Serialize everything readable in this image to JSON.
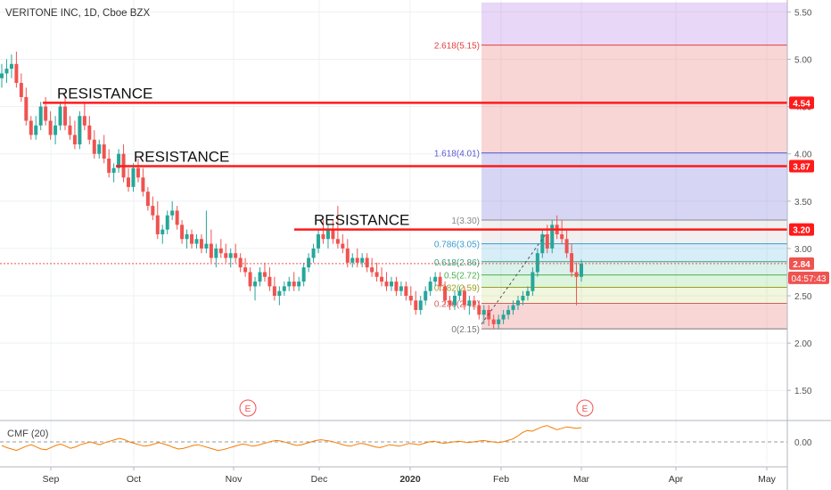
{
  "chart_data": {
    "type": "candlestick",
    "title": "VERITONE INC, 1D, Cboe BZX",
    "y_axis": {
      "ticks": [
        "1.50",
        "2.00",
        "2.50",
        "3.00",
        "3.50",
        "4.00",
        "4.50",
        "5.00",
        "5.50"
      ],
      "ylim": [
        1.1,
        5.6
      ]
    },
    "x_axis": {
      "ticks": [
        "Sep",
        "Oct",
        "Nov",
        "Dec",
        "2020",
        "Feb",
        "Mar",
        "Apr",
        "May"
      ]
    },
    "grid": true,
    "candles": [
      [
        4.8,
        4.95,
        4.7,
        4.85
      ],
      [
        4.85,
        5.0,
        4.75,
        4.9
      ],
      [
        4.9,
        5.05,
        4.8,
        4.95
      ],
      [
        4.95,
        5.08,
        4.7,
        4.75
      ],
      [
        4.75,
        4.85,
        4.55,
        4.6
      ],
      [
        4.6,
        4.7,
        4.3,
        4.35
      ],
      [
        4.35,
        4.4,
        4.15,
        4.2
      ],
      [
        4.2,
        4.4,
        4.15,
        4.3
      ],
      [
        4.3,
        4.55,
        4.25,
        4.5
      ],
      [
        4.5,
        4.6,
        4.3,
        4.35
      ],
      [
        4.35,
        4.45,
        4.15,
        4.2
      ],
      [
        4.2,
        4.4,
        4.1,
        4.3
      ],
      [
        4.3,
        4.55,
        4.25,
        4.5
      ],
      [
        4.5,
        4.6,
        4.25,
        4.3
      ],
      [
        4.3,
        4.4,
        4.15,
        4.2
      ],
      [
        4.2,
        4.35,
        4.05,
        4.1
      ],
      [
        4.1,
        4.45,
        4.05,
        4.4
      ],
      [
        4.4,
        4.55,
        4.25,
        4.3
      ],
      [
        4.3,
        4.4,
        4.1,
        4.15
      ],
      [
        4.15,
        4.25,
        3.95,
        4.0
      ],
      [
        4.0,
        4.15,
        3.95,
        4.1
      ],
      [
        4.1,
        4.2,
        3.9,
        3.95
      ],
      [
        3.95,
        4.05,
        3.75,
        3.8
      ],
      [
        3.8,
        3.9,
        3.7,
        3.85
      ],
      [
        3.85,
        4.05,
        3.8,
        4.0
      ],
      [
        4.0,
        4.1,
        3.7,
        3.75
      ],
      [
        3.75,
        3.85,
        3.6,
        3.65
      ],
      [
        3.65,
        3.9,
        3.6,
        3.85
      ],
      [
        3.85,
        3.95,
        3.7,
        3.75
      ],
      [
        3.75,
        3.85,
        3.55,
        3.6
      ],
      [
        3.6,
        3.65,
        3.4,
        3.45
      ],
      [
        3.45,
        3.55,
        3.3,
        3.35
      ],
      [
        3.35,
        3.5,
        3.1,
        3.15
      ],
      [
        3.15,
        3.25,
        3.05,
        3.2
      ],
      [
        3.2,
        3.4,
        3.15,
        3.35
      ],
      [
        3.35,
        3.5,
        3.3,
        3.4
      ],
      [
        3.4,
        3.45,
        3.2,
        3.25
      ],
      [
        3.25,
        3.3,
        3.05,
        3.1
      ],
      [
        3.1,
        3.2,
        3.0,
        3.15
      ],
      [
        3.15,
        3.2,
        3.0,
        3.05
      ],
      [
        3.05,
        3.15,
        3.0,
        3.1
      ],
      [
        3.1,
        3.15,
        2.95,
        3.0
      ],
      [
        3.0,
        3.4,
        2.95,
        3.05
      ],
      [
        3.05,
        3.2,
        2.85,
        2.9
      ],
      [
        2.9,
        3.05,
        2.8,
        3.0
      ],
      [
        3.0,
        3.1,
        2.9,
        2.95
      ],
      [
        2.95,
        3.05,
        2.85,
        2.9
      ],
      [
        2.9,
        3.0,
        2.8,
        2.95
      ],
      [
        2.95,
        3.05,
        2.85,
        2.9
      ],
      [
        2.9,
        2.95,
        2.75,
        2.8
      ],
      [
        2.8,
        2.9,
        2.7,
        2.75
      ],
      [
        2.75,
        2.8,
        2.55,
        2.6
      ],
      [
        2.6,
        2.7,
        2.45,
        2.65
      ],
      [
        2.65,
        2.8,
        2.6,
        2.75
      ],
      [
        2.75,
        2.85,
        2.65,
        2.7
      ],
      [
        2.7,
        2.8,
        2.55,
        2.6
      ],
      [
        2.6,
        2.7,
        2.45,
        2.5
      ],
      [
        2.5,
        2.6,
        2.4,
        2.55
      ],
      [
        2.55,
        2.65,
        2.5,
        2.6
      ],
      [
        2.6,
        2.7,
        2.55,
        2.65
      ],
      [
        2.65,
        2.75,
        2.55,
        2.6
      ],
      [
        2.6,
        2.7,
        2.55,
        2.65
      ],
      [
        2.65,
        2.85,
        2.6,
        2.8
      ],
      [
        2.8,
        2.95,
        2.75,
        2.9
      ],
      [
        2.9,
        3.05,
        2.85,
        3.0
      ],
      [
        3.0,
        3.2,
        2.95,
        3.15
      ],
      [
        3.15,
        3.3,
        3.05,
        3.1
      ],
      [
        3.1,
        3.25,
        3.0,
        3.2
      ],
      [
        3.2,
        3.3,
        3.05,
        3.1
      ],
      [
        3.1,
        3.45,
        3.0,
        3.05
      ],
      [
        3.05,
        3.15,
        2.95,
        3.0
      ],
      [
        3.0,
        3.1,
        2.8,
        2.85
      ],
      [
        2.85,
        2.95,
        2.8,
        2.9
      ],
      [
        2.9,
        3.0,
        2.8,
        2.85
      ],
      [
        2.85,
        2.95,
        2.8,
        2.9
      ],
      [
        2.9,
        2.95,
        2.75,
        2.8
      ],
      [
        2.8,
        2.9,
        2.7,
        2.75
      ],
      [
        2.75,
        2.85,
        2.65,
        2.7
      ],
      [
        2.7,
        2.8,
        2.6,
        2.65
      ],
      [
        2.65,
        2.75,
        2.55,
        2.6
      ],
      [
        2.6,
        2.7,
        2.55,
        2.65
      ],
      [
        2.65,
        2.7,
        2.5,
        2.55
      ],
      [
        2.55,
        2.65,
        2.5,
        2.6
      ],
      [
        2.6,
        2.65,
        2.45,
        2.5
      ],
      [
        2.5,
        2.6,
        2.4,
        2.45
      ],
      [
        2.45,
        2.55,
        2.3,
        2.35
      ],
      [
        2.35,
        2.5,
        2.3,
        2.45
      ],
      [
        2.45,
        2.6,
        2.4,
        2.55
      ],
      [
        2.55,
        2.7,
        2.5,
        2.65
      ],
      [
        2.65,
        2.75,
        2.6,
        2.7
      ],
      [
        2.7,
        2.75,
        2.55,
        2.6
      ],
      [
        2.6,
        2.65,
        2.4,
        2.45
      ],
      [
        2.45,
        2.5,
        2.35,
        2.4
      ],
      [
        2.4,
        2.55,
        2.35,
        2.5
      ],
      [
        2.5,
        2.6,
        2.45,
        2.55
      ],
      [
        2.55,
        2.6,
        2.35,
        2.4
      ],
      [
        2.4,
        2.5,
        2.3,
        2.45
      ],
      [
        2.45,
        2.5,
        2.35,
        2.4
      ],
      [
        2.4,
        2.45,
        2.25,
        2.3
      ],
      [
        2.3,
        2.4,
        2.2,
        2.35
      ],
      [
        2.35,
        2.4,
        2.18,
        2.25
      ],
      [
        2.25,
        2.3,
        2.15,
        2.2
      ],
      [
        2.2,
        2.3,
        2.15,
        2.25
      ],
      [
        2.25,
        2.35,
        2.2,
        2.3
      ],
      [
        2.3,
        2.4,
        2.25,
        2.35
      ],
      [
        2.35,
        2.45,
        2.3,
        2.4
      ],
      [
        2.4,
        2.5,
        2.35,
        2.45
      ],
      [
        2.45,
        2.55,
        2.4,
        2.5
      ],
      [
        2.5,
        2.6,
        2.45,
        2.55
      ],
      [
        2.55,
        2.8,
        2.5,
        2.75
      ],
      [
        2.75,
        3.0,
        2.7,
        2.95
      ],
      [
        2.95,
        3.2,
        2.9,
        3.15
      ],
      [
        3.15,
        3.25,
        2.95,
        3.0
      ],
      [
        3.0,
        3.3,
        2.95,
        3.25
      ],
      [
        3.25,
        3.35,
        3.1,
        3.15
      ],
      [
        3.15,
        3.3,
        3.05,
        3.1
      ],
      [
        3.1,
        3.2,
        2.9,
        2.95
      ],
      [
        2.95,
        3.05,
        2.7,
        2.75
      ],
      [
        2.75,
        2.85,
        2.4,
        2.7
      ],
      [
        2.7,
        2.88,
        2.65,
        2.84
      ]
    ],
    "fibonacci": [
      {
        "label": "2.618(5.15)",
        "value": 5.15
      },
      {
        "label": "1.618(4.01)",
        "value": 4.01
      },
      {
        "label": "1(3.30)",
        "value": 3.3
      },
      {
        "label": "0.786(3.05)",
        "value": 3.05
      },
      {
        "label": "0.618(2.86)",
        "value": 2.86
      },
      {
        "label": "0.5(2.72)",
        "value": 2.72
      },
      {
        "label": "0.382(2.59)",
        "value": 2.59
      },
      {
        "label": "0.236(2.42)",
        "value": 2.42
      },
      {
        "label": "0(2.15)",
        "value": 2.15
      }
    ],
    "resistance_lines": [
      {
        "label": "RESISTANCE",
        "value": 4.54,
        "badge": "4.54"
      },
      {
        "label": "RESISTANCE",
        "value": 3.87,
        "badge": "3.87"
      },
      {
        "label": "RESISTANCE",
        "value": 3.2,
        "badge": "3.20"
      }
    ],
    "last_price": {
      "value": 2.84,
      "label": "2.84",
      "countdown": "04:57:43"
    },
    "earnings_markers": [
      "E",
      "E"
    ],
    "indicator": {
      "title": "CMF (20)",
      "tick": "0.00",
      "values": [
        -0.05,
        -0.08,
        -0.1,
        -0.12,
        -0.09,
        -0.06,
        -0.04,
        -0.07,
        -0.1,
        -0.11,
        -0.08,
        -0.05,
        -0.03,
        -0.06,
        -0.09,
        -0.07,
        -0.04,
        -0.02,
        0.0,
        -0.02,
        -0.04,
        -0.01,
        0.01,
        0.03,
        0.05,
        0.03,
        0.0,
        -0.02,
        -0.04,
        -0.06,
        -0.05,
        -0.03,
        -0.01,
        -0.03,
        -0.05,
        -0.08,
        -0.1,
        -0.09,
        -0.07,
        -0.05,
        -0.04,
        -0.06,
        -0.08,
        -0.1,
        -0.12,
        -0.11,
        -0.09,
        -0.07,
        -0.05,
        -0.03,
        -0.04,
        -0.06,
        -0.05,
        -0.03,
        -0.01,
        0.01,
        0.02,
        0.01,
        -0.01,
        -0.03,
        -0.05,
        -0.04,
        -0.02,
        0.0,
        0.02,
        0.03,
        0.02,
        0.01,
        -0.01,
        -0.03,
        -0.05,
        -0.06,
        -0.04,
        -0.02,
        -0.03,
        -0.05,
        -0.07,
        -0.08,
        -0.06,
        -0.04,
        -0.05,
        -0.06,
        -0.04,
        -0.02,
        -0.03,
        -0.04,
        -0.02,
        0.0,
        0.01,
        -0.01,
        -0.02,
        -0.01,
        0.0,
        0.01,
        0.0,
        -0.01,
        0.0,
        0.01,
        0.02,
        0.01,
        0.0,
        -0.01,
        0.0,
        0.02,
        0.04,
        0.08,
        0.13,
        0.16,
        0.15,
        0.18,
        0.21,
        0.23,
        0.2,
        0.17,
        0.19,
        0.21,
        0.2,
        0.19,
        0.2
      ]
    }
  }
}
